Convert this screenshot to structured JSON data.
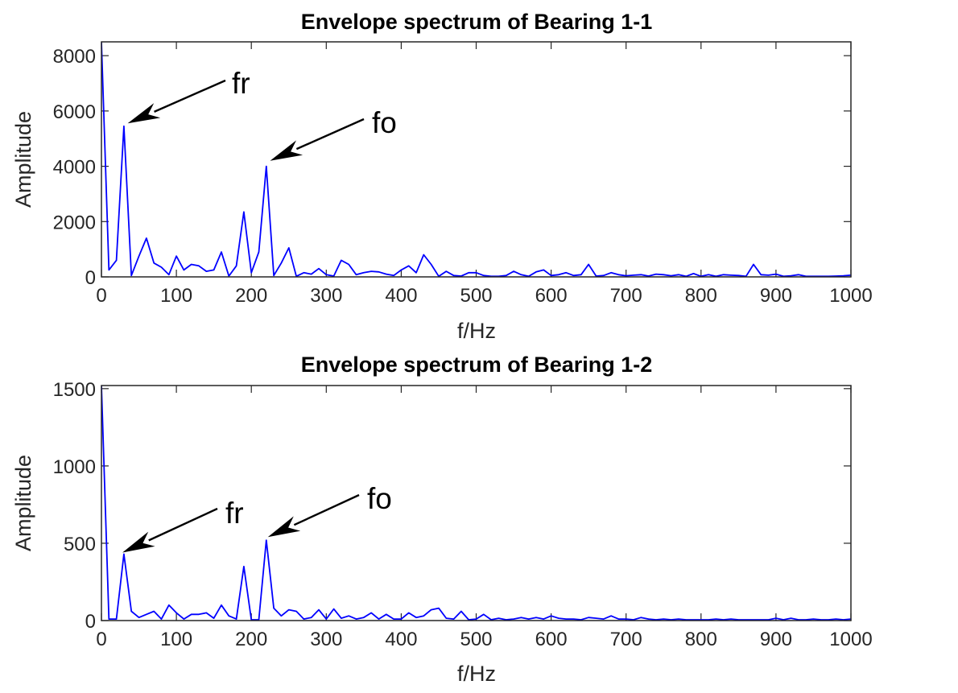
{
  "chart_data": [
    {
      "type": "line",
      "title": "Envelope spectrum of Bearing 1-1",
      "xlabel": "f/Hz",
      "ylabel": "Amplitude",
      "xlim": [
        0,
        1000
      ],
      "ylim": [
        0,
        8500
      ],
      "xticks": [
        0,
        100,
        200,
        300,
        400,
        500,
        600,
        700,
        800,
        900,
        1000
      ],
      "yticks": [
        0,
        2000,
        4000,
        6000,
        8000
      ],
      "color": "#0000ff",
      "grid": false,
      "series": [
        {
          "x": [
            0,
            10,
            20,
            30,
            40,
            50,
            60,
            70,
            80,
            90,
            100,
            110,
            120,
            130,
            140,
            150,
            160,
            170,
            180,
            190,
            200,
            210,
            220,
            230,
            240,
            250,
            260,
            270,
            280,
            290,
            300,
            310,
            320,
            330,
            340,
            350,
            360,
            370,
            380,
            390,
            400,
            410,
            420,
            430,
            440,
            450,
            460,
            470,
            480,
            490,
            500,
            510,
            520,
            530,
            540,
            550,
            560,
            570,
            580,
            590,
            600,
            610,
            620,
            630,
            640,
            650,
            660,
            670,
            680,
            690,
            700,
            710,
            720,
            730,
            740,
            750,
            760,
            770,
            780,
            790,
            800,
            810,
            820,
            830,
            840,
            850,
            860,
            870,
            880,
            890,
            900,
            910,
            920,
            930,
            940,
            950,
            960,
            970,
            980,
            990,
            1000
          ],
          "y": [
            8500,
            250,
            600,
            5450,
            50,
            750,
            1400,
            500,
            350,
            80,
            750,
            250,
            450,
            400,
            200,
            250,
            900,
            30,
            400,
            2350,
            150,
            900,
            4000,
            50,
            500,
            1050,
            20,
            150,
            100,
            300,
            80,
            30,
            600,
            450,
            80,
            150,
            200,
            180,
            100,
            50,
            250,
            400,
            150,
            800,
            450,
            20,
            200,
            50,
            30,
            150,
            150,
            50,
            20,
            20,
            50,
            200,
            80,
            20,
            180,
            250,
            50,
            80,
            150,
            50,
            80,
            450,
            30,
            50,
            150,
            80,
            40,
            60,
            80,
            30,
            100,
            80,
            40,
            80,
            20,
            120,
            20,
            80,
            20,
            80,
            60,
            50,
            20,
            450,
            80,
            60,
            100,
            20,
            40,
            80,
            20,
            20,
            20,
            20,
            30,
            40,
            60
          ]
        }
      ],
      "annotations": [
        {
          "text": "fr",
          "x": 35,
          "y": 5550
        },
        {
          "text": "fo",
          "x": 225,
          "y": 4200
        }
      ]
    },
    {
      "type": "line",
      "title": "Envelope spectrum of Bearing 1-2",
      "xlabel": "f/Hz",
      "ylabel": "Amplitude",
      "xlim": [
        0,
        1000
      ],
      "ylim": [
        0,
        1520
      ],
      "xticks": [
        0,
        100,
        200,
        300,
        400,
        500,
        600,
        700,
        800,
        900,
        1000
      ],
      "yticks": [
        0,
        500,
        1000,
        1500
      ],
      "color": "#0000ff",
      "grid": false,
      "series": [
        {
          "x": [
            0,
            10,
            20,
            30,
            40,
            50,
            60,
            70,
            80,
            90,
            100,
            110,
            120,
            130,
            140,
            150,
            160,
            170,
            180,
            190,
            200,
            210,
            220,
            230,
            240,
            250,
            260,
            270,
            280,
            290,
            300,
            310,
            320,
            330,
            340,
            350,
            360,
            370,
            380,
            390,
            400,
            410,
            420,
            430,
            440,
            450,
            460,
            470,
            480,
            490,
            500,
            510,
            520,
            530,
            540,
            550,
            560,
            570,
            580,
            590,
            600,
            610,
            620,
            630,
            640,
            650,
            660,
            670,
            680,
            690,
            700,
            710,
            720,
            730,
            740,
            750,
            760,
            770,
            780,
            790,
            800,
            810,
            820,
            830,
            840,
            850,
            860,
            870,
            880,
            890,
            900,
            910,
            920,
            930,
            940,
            950,
            960,
            970,
            980,
            990,
            1000
          ],
          "y": [
            1520,
            10,
            10,
            430,
            60,
            20,
            40,
            60,
            10,
            100,
            50,
            10,
            40,
            40,
            50,
            15,
            100,
            30,
            10,
            350,
            5,
            5,
            520,
            80,
            30,
            70,
            60,
            10,
            20,
            70,
            10,
            75,
            15,
            30,
            10,
            20,
            50,
            10,
            40,
            10,
            10,
            50,
            20,
            30,
            70,
            80,
            15,
            10,
            60,
            5,
            10,
            40,
            5,
            15,
            5,
            10,
            20,
            10,
            20,
            10,
            30,
            15,
            10,
            10,
            5,
            20,
            15,
            10,
            30,
            10,
            10,
            5,
            20,
            10,
            5,
            10,
            5,
            10,
            5,
            5,
            5,
            5,
            10,
            5,
            10,
            5,
            5,
            5,
            5,
            5,
            15,
            5,
            15,
            5,
            5,
            10,
            5,
            5,
            10,
            5,
            10
          ]
        }
      ],
      "annotations": [
        {
          "text": "fr",
          "x": 28,
          "y": 440
        },
        {
          "text": "fo",
          "x": 222,
          "y": 540
        }
      ]
    }
  ]
}
